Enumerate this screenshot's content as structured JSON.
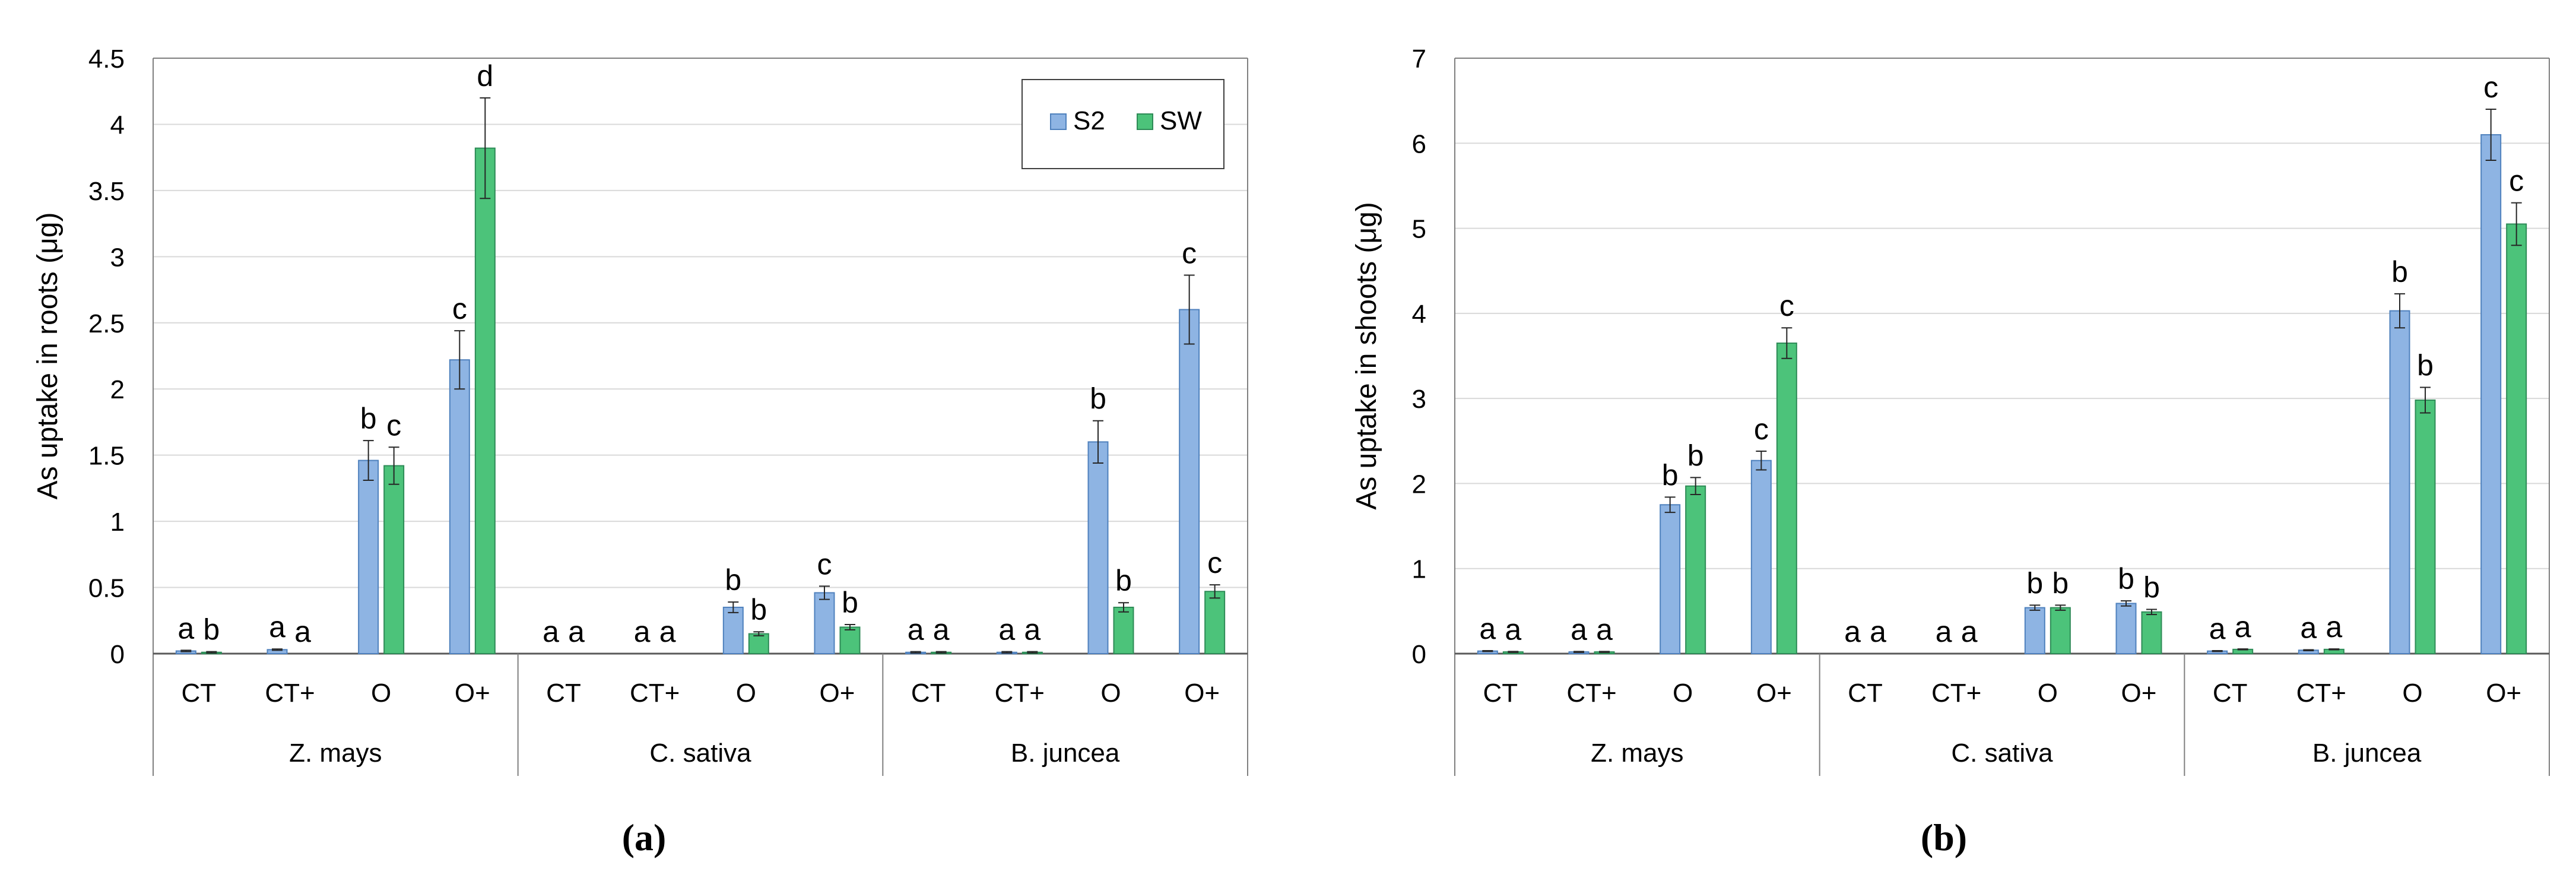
{
  "legend": {
    "items": [
      {
        "name": "S2",
        "color": "#8EB4E3"
      },
      {
        "name": "SW",
        "color": "#4CC37A"
      }
    ]
  },
  "colors": {
    "S2_fill": "#8EB4E3",
    "S2_stroke": "#4F81BD",
    "SW_fill": "#4CC37A",
    "SW_stroke": "#2E8B57",
    "gridline": "#D9D9D9",
    "axis": "#7F7F7F"
  },
  "chart_data": [
    {
      "type": "bar",
      "caption": "(a)",
      "ylabel": "As uptake in roots (μg)",
      "ylim": [
        0,
        4.5
      ],
      "yticks": [
        0,
        0.5,
        1,
        1.5,
        2,
        2.5,
        3,
        3.5,
        4,
        4.5
      ],
      "ytick_labels": [
        "0",
        "0.5",
        "1",
        "1.5",
        "2",
        "2.5",
        "3",
        "3.5",
        "4",
        "4.5"
      ],
      "groups": [
        "Z. mays",
        "C. sativa",
        "B. juncea"
      ],
      "categories": [
        "CT",
        "CT+",
        "O",
        "O+",
        "CT",
        "CT+",
        "O",
        "O+",
        "CT",
        "CT+",
        "O",
        "O+"
      ],
      "series": [
        {
          "name": "S2",
          "values": [
            0.02,
            0.03,
            1.46,
            2.22,
            0.0,
            0.0,
            0.35,
            0.46,
            0.01,
            0.01,
            1.6,
            2.6
          ],
          "errors": [
            0.005,
            0.005,
            0.15,
            0.22,
            0.0,
            0.0,
            0.04,
            0.05,
            0.005,
            0.005,
            0.16,
            0.26
          ],
          "letters": [
            "a",
            "a",
            "b",
            "c",
            "a",
            "a",
            "b",
            "c",
            "a",
            "a",
            "b",
            "c"
          ]
        },
        {
          "name": "SW",
          "values": [
            0.01,
            0.0,
            1.42,
            3.82,
            0.0,
            0.0,
            0.15,
            0.2,
            0.01,
            0.01,
            0.35,
            0.47
          ],
          "errors": [
            0.005,
            0.0,
            0.14,
            0.38,
            0.0,
            0.0,
            0.015,
            0.02,
            0.005,
            0.005,
            0.035,
            0.05
          ],
          "letters": [
            "b",
            "a",
            "c",
            "d",
            "a",
            "a",
            "b",
            "b",
            "a",
            "a",
            "b",
            "c"
          ]
        }
      ]
    },
    {
      "type": "bar",
      "caption": "(b)",
      "ylabel": "As uptake in shoots (μg)",
      "ylim": [
        0,
        7
      ],
      "yticks": [
        0,
        1,
        2,
        3,
        4,
        5,
        6,
        7
      ],
      "ytick_labels": [
        "0",
        "1",
        "2",
        "3",
        "4",
        "5",
        "6",
        "7"
      ],
      "groups": [
        "Z. mays",
        "C. sativa",
        "B. juncea"
      ],
      "categories": [
        "CT",
        "CT+",
        "O",
        "O+",
        "CT",
        "CT+",
        "O",
        "O+",
        "CT",
        "CT+",
        "O",
        "O+"
      ],
      "series": [
        {
          "name": "S2",
          "values": [
            0.03,
            0.02,
            1.75,
            2.27,
            0.0,
            0.0,
            0.54,
            0.59,
            0.03,
            0.04,
            4.03,
            6.1
          ],
          "errors": [
            0.005,
            0.005,
            0.09,
            0.11,
            0.0,
            0.0,
            0.03,
            0.03,
            0.005,
            0.005,
            0.2,
            0.3
          ],
          "letters": [
            "a",
            "a",
            "b",
            "c",
            "a",
            "a",
            "b",
            "b",
            "a",
            "a",
            "b",
            "c"
          ]
        },
        {
          "name": "SW",
          "values": [
            0.02,
            0.02,
            1.97,
            3.65,
            0.0,
            0.0,
            0.54,
            0.49,
            0.05,
            0.05,
            2.98,
            5.05
          ],
          "errors": [
            0.005,
            0.005,
            0.1,
            0.18,
            0.0,
            0.0,
            0.03,
            0.03,
            0.005,
            0.005,
            0.15,
            0.25
          ],
          "letters": [
            "a",
            "a",
            "b",
            "c",
            "a",
            "a",
            "b",
            "b",
            "a",
            "a",
            "b",
            "c"
          ]
        }
      ]
    }
  ]
}
